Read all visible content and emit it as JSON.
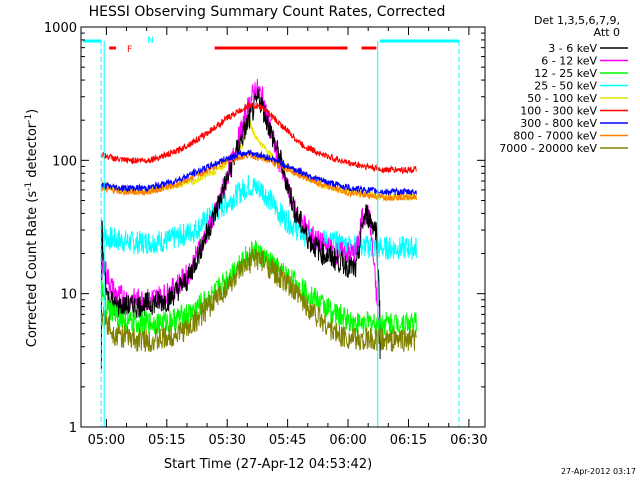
{
  "chart_data": {
    "type": "line",
    "title": "HESSI Observing Summary Count Rates, Corrected",
    "xlabel": "Start Time (27-Apr-12 04:53:42)",
    "ylabel_main": "Corrected Count Rate (s",
    "ylabel_sup1": "-1",
    "ylabel_mid": " detector",
    "ylabel_sup2": "-1",
    "ylabel_end": ")",
    "y_scale": "log",
    "ylim": [
      1,
      1000
    ],
    "xlim": [
      "04:53:42",
      "06:34:00"
    ],
    "x_ticks": [
      "05:00",
      "05:15",
      "05:30",
      "05:45",
      "06:00",
      "06:15",
      "06:30"
    ],
    "y_ticks": [
      "1",
      "10",
      "100",
      "1000"
    ],
    "legend_header": [
      "Det 1,3,5,6,7,9,",
      "Att 0"
    ],
    "legend_position": "right",
    "footer_date": "27-Apr-2012 03:17",
    "flags": {
      "F_label": "F",
      "N_label": "N"
    },
    "series": [
      {
        "name": "3 - 6 keV",
        "color": "#000000",
        "points": [
          [
            304,
            2.5
          ],
          [
            305,
            18
          ],
          [
            310,
            35
          ],
          [
            330,
            20
          ],
          [
            360,
            14
          ],
          [
            400,
            9
          ],
          [
            450,
            9
          ],
          [
            500,
            8
          ],
          [
            600,
            8
          ],
          [
            800,
            8
          ],
          [
            1300,
            9
          ],
          [
            1600,
            13
          ],
          [
            2000,
            40
          ],
          [
            2300,
            110
          ],
          [
            2500,
            200
          ],
          [
            2650,
            300
          ],
          [
            2800,
            180
          ],
          [
            3000,
            90
          ],
          [
            3200,
            40
          ],
          [
            3400,
            25
          ],
          [
            3600,
            20
          ],
          [
            3800,
            18
          ],
          [
            4100,
            15
          ],
          [
            4200,
            35
          ],
          [
            4250,
            40
          ],
          [
            4400,
            30
          ],
          [
            4450,
            8
          ],
          [
            4460,
            2
          ]
        ]
      },
      {
        "name": "6 - 12 keV",
        "color": "#ff00ff",
        "points": [
          [
            305,
            12
          ],
          [
            330,
            18
          ],
          [
            380,
            14
          ],
          [
            500,
            10
          ],
          [
            700,
            9
          ],
          [
            1000,
            9
          ],
          [
            1300,
            10
          ],
          [
            1600,
            14
          ],
          [
            2000,
            40
          ],
          [
            2300,
            120
          ],
          [
            2500,
            260
          ],
          [
            2600,
            350
          ],
          [
            2700,
            300
          ],
          [
            2850,
            150
          ],
          [
            3000,
            80
          ],
          [
            3200,
            40
          ],
          [
            3500,
            25
          ],
          [
            3800,
            20
          ],
          [
            4100,
            20
          ],
          [
            4200,
            40
          ],
          [
            4300,
            38
          ],
          [
            4450,
            5
          ]
        ]
      },
      {
        "name": "12 - 25 keV",
        "color": "#00ff00",
        "points": [
          [
            304,
            11
          ],
          [
            330,
            9
          ],
          [
            400,
            7.5
          ],
          [
            700,
            6
          ],
          [
            1200,
            6
          ],
          [
            1600,
            7
          ],
          [
            2000,
            10
          ],
          [
            2400,
            18
          ],
          [
            2600,
            21
          ],
          [
            2800,
            17
          ],
          [
            3200,
            12
          ],
          [
            3500,
            9
          ],
          [
            3800,
            7
          ],
          [
            4100,
            6
          ],
          [
            4450,
            6
          ],
          [
            4600,
            6
          ],
          [
            5000,
            6
          ]
        ]
      },
      {
        "name": "25 - 50 keV",
        "color": "#00ffff",
        "points": [
          [
            304,
            30
          ],
          [
            400,
            26
          ],
          [
            800,
            24
          ],
          [
            1300,
            25
          ],
          [
            1700,
            30
          ],
          [
            2100,
            45
          ],
          [
            2500,
            65
          ],
          [
            2700,
            60
          ],
          [
            3000,
            38
          ],
          [
            3300,
            28
          ],
          [
            3600,
            25
          ],
          [
            4000,
            23
          ],
          [
            4500,
            22
          ],
          [
            5000,
            22
          ]
        ]
      },
      {
        "name": "50 - 100 keV",
        "color": "#e6e600",
        "points": [
          [
            304,
            68
          ],
          [
            500,
            60
          ],
          [
            900,
            58
          ],
          [
            1300,
            63
          ],
          [
            1700,
            70
          ],
          [
            2100,
            88
          ],
          [
            2400,
            130
          ],
          [
            2500,
            200
          ],
          [
            2600,
            150
          ],
          [
            2900,
            100
          ],
          [
            3200,
            80
          ],
          [
            3600,
            65
          ],
          [
            4000,
            58
          ],
          [
            4500,
            53
          ],
          [
            5000,
            53
          ]
        ]
      },
      {
        "name": "100 - 300 keV",
        "color": "#ff0000",
        "points": [
          [
            304,
            110
          ],
          [
            600,
            100
          ],
          [
            1000,
            100
          ],
          [
            1400,
            115
          ],
          [
            1800,
            150
          ],
          [
            2200,
            210
          ],
          [
            2500,
            260
          ],
          [
            2700,
            250
          ],
          [
            3000,
            180
          ],
          [
            3300,
            130
          ],
          [
            3600,
            110
          ],
          [
            4000,
            95
          ],
          [
            4500,
            85
          ],
          [
            5000,
            85
          ]
        ]
      },
      {
        "name": "300 - 800 keV",
        "color": "#0000ff",
        "points": [
          [
            304,
            65
          ],
          [
            600,
            62
          ],
          [
            1000,
            62
          ],
          [
            1400,
            70
          ],
          [
            1800,
            85
          ],
          [
            2200,
            105
          ],
          [
            2500,
            115
          ],
          [
            2800,
            105
          ],
          [
            3200,
            85
          ],
          [
            3600,
            70
          ],
          [
            4000,
            62
          ],
          [
            4500,
            58
          ],
          [
            5000,
            58
          ]
        ]
      },
      {
        "name": "800 - 7000 keV",
        "color": "#ff8000",
        "points": [
          [
            304,
            62
          ],
          [
            600,
            58
          ],
          [
            1000,
            58
          ],
          [
            1400,
            65
          ],
          [
            1800,
            80
          ],
          [
            2200,
            100
          ],
          [
            2500,
            110
          ],
          [
            2800,
            100
          ],
          [
            3200,
            80
          ],
          [
            3600,
            65
          ],
          [
            4000,
            57
          ],
          [
            4500,
            53
          ],
          [
            5000,
            53
          ]
        ]
      },
      {
        "name": "7000 - 20000 keV",
        "color": "#808000",
        "points": [
          [
            304,
            7
          ],
          [
            500,
            5
          ],
          [
            800,
            4.5
          ],
          [
            1200,
            4.5
          ],
          [
            1600,
            5.5
          ],
          [
            2000,
            9
          ],
          [
            2400,
            15
          ],
          [
            2600,
            19
          ],
          [
            2800,
            16
          ],
          [
            3200,
            10
          ],
          [
            3500,
            7
          ],
          [
            3800,
            5
          ],
          [
            4100,
            4.5
          ],
          [
            4450,
            4.5
          ],
          [
            5000,
            4.5
          ]
        ]
      }
    ]
  }
}
